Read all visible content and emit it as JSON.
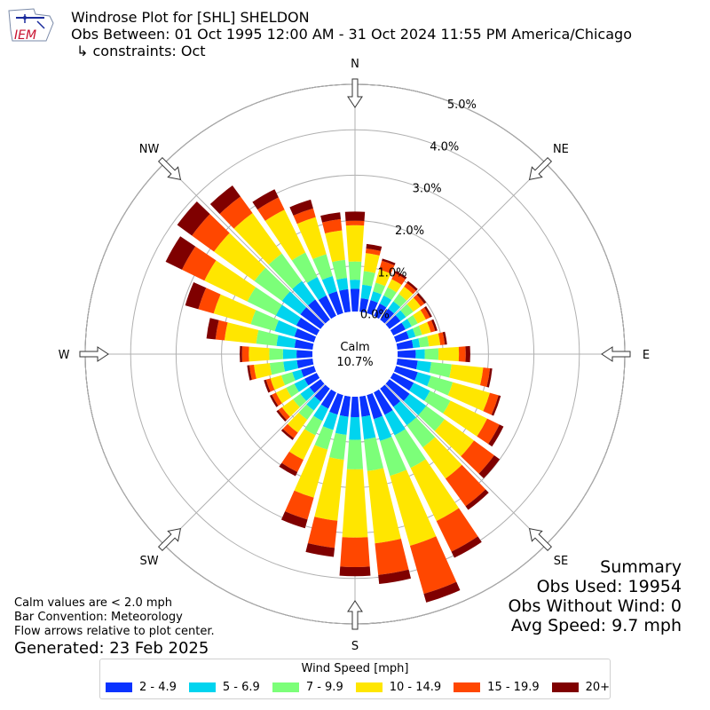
{
  "header": {
    "title": "Windrose Plot for [SHL] SHELDON",
    "subtitle": "Obs Between: 01 Oct 1995 12:00 AM - 31 Oct 2024 11:55 PM America/Chicago",
    "constraints": "↳ constraints: Oct"
  },
  "logo": {
    "text": "IEM"
  },
  "summary": {
    "heading": "Summary",
    "obs_used": "Obs Used: 19954",
    "obs_without_wind": "Obs Without Wind: 0",
    "avg_speed": "Avg Speed: 9.7 mph"
  },
  "notes": {
    "calm_note": "Calm values are < 2.0 mph",
    "bar_convention": "Bar Convention: Meteorology",
    "flow_arrows": "Flow arrows relative to plot center.",
    "generated": "Generated: 23 Feb 2025"
  },
  "center": {
    "label": "Calm",
    "value": "10.7%"
  },
  "colors": {
    "bins": [
      "#0a33ff",
      "#00d4ef",
      "#7cff79",
      "#ffe600",
      "#ff4700",
      "#7f0000"
    ]
  },
  "chart_data": {
    "type": "windrose",
    "calm_percent": 10.7,
    "directions": [
      "N",
      "NE",
      "E",
      "SE",
      "S",
      "SW",
      "W",
      "NW"
    ],
    "radial_ticks": [
      "0.0%",
      "1.0%",
      "2.0%",
      "3.0%",
      "4.0%",
      "5.0%"
    ],
    "radial_range": [
      0,
      5
    ],
    "legend_title": "Wind Speed [mph]",
    "speed_bins": [
      "2 - 4.9",
      "5 - 6.9",
      "7 - 9.9",
      "10 - 14.9",
      "15 - 19.9",
      "20+"
    ],
    "sector_width_deg": 10,
    "sector_directions_deg": [
      0,
      10,
      20,
      30,
      40,
      50,
      60,
      70,
      80,
      90,
      100,
      110,
      120,
      130,
      140,
      150,
      160,
      170,
      180,
      190,
      200,
      210,
      220,
      230,
      240,
      250,
      260,
      270,
      280,
      290,
      300,
      310,
      320,
      330,
      340,
      350
    ],
    "cumulative_percent": [
      [
        0.5,
        0.7,
        1.1,
        1.9,
        2.0,
        2.2
      ],
      [
        0.3,
        0.6,
        0.9,
        1.3,
        1.4,
        1.5
      ],
      [
        0.3,
        0.5,
        0.7,
        1.0,
        1.2,
        1.25
      ],
      [
        0.3,
        0.5,
        0.7,
        0.9,
        1.05,
        1.1
      ],
      [
        0.3,
        0.5,
        0.7,
        0.9,
        1.0,
        1.05
      ],
      [
        0.3,
        0.45,
        0.65,
        0.85,
        0.95,
        1.0
      ],
      [
        0.3,
        0.45,
        0.6,
        0.8,
        0.9,
        0.95
      ],
      [
        0.3,
        0.45,
        0.6,
        0.8,
        0.9,
        0.95
      ],
      [
        0.35,
        0.5,
        0.7,
        0.95,
        1.05,
        1.1
      ],
      [
        0.4,
        0.6,
        0.9,
        1.35,
        1.5,
        1.6
      ],
      [
        0.45,
        0.75,
        1.2,
        1.9,
        2.05,
        2.1
      ],
      [
        0.5,
        0.8,
        1.3,
        2.15,
        2.35,
        2.4
      ],
      [
        0.5,
        0.9,
        1.4,
        2.3,
        2.6,
        2.7
      ],
      [
        0.55,
        1.0,
        1.5,
        2.3,
        2.85,
        3.0
      ],
      [
        0.5,
        1.0,
        1.6,
        2.45,
        3.2,
        3.3
      ],
      [
        0.55,
        1.05,
        1.85,
        3.15,
        3.9,
        4.05
      ],
      [
        0.55,
        1.05,
        1.85,
        3.45,
        4.55,
        4.75
      ],
      [
        0.45,
        0.95,
        1.65,
        3.25,
        3.95,
        4.15
      ],
      [
        0.45,
        0.95,
        1.6,
        3.1,
        3.75,
        3.95
      ],
      [
        0.45,
        0.85,
        1.4,
        2.75,
        3.35,
        3.55
      ],
      [
        0.45,
        0.8,
        1.25,
        2.35,
        2.85,
        3.05
      ],
      [
        0.4,
        0.7,
        1.05,
        1.65,
        1.95,
        2.05
      ],
      [
        0.35,
        0.6,
        0.85,
        1.2,
        1.35,
        1.4
      ],
      [
        0.3,
        0.55,
        0.75,
        1.05,
        1.15,
        1.2
      ],
      [
        0.3,
        0.55,
        0.75,
        1.0,
        1.1,
        1.15
      ],
      [
        0.3,
        0.5,
        0.75,
        1.0,
        1.1,
        1.15
      ],
      [
        0.35,
        0.65,
        0.95,
        1.3,
        1.4,
        1.45
      ],
      [
        0.35,
        0.65,
        0.95,
        1.4,
        1.55,
        1.6
      ],
      [
        0.4,
        0.8,
        1.25,
        1.95,
        2.15,
        2.35
      ],
      [
        0.45,
        0.9,
        1.45,
        2.3,
        2.65,
        2.95
      ],
      [
        0.5,
        1.0,
        1.7,
        2.75,
        3.3,
        3.7
      ],
      [
        0.55,
        1.05,
        1.8,
        2.9,
        3.5,
        3.9
      ],
      [
        0.55,
        1.05,
        1.8,
        2.9,
        3.35,
        3.65
      ],
      [
        0.5,
        0.95,
        1.55,
        2.6,
        2.9,
        3.1
      ],
      [
        0.5,
        0.85,
        1.35,
        2.2,
        2.4,
        2.6
      ],
      [
        0.5,
        0.75,
        1.15,
        1.8,
        2.05,
        2.2
      ]
    ]
  }
}
